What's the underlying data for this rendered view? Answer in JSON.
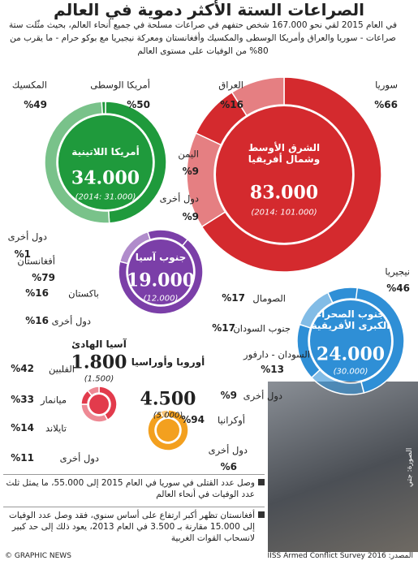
{
  "header": {
    "title": "الصراعات الستة الأكثر دموية في العالم",
    "intro": "في العام 2015 لقي نحو 167.000 شخص حتفهم في صراعات مسلحة في جميع أنحاء العالم، بحيث مثّلت ستة صراعات - سوريا والعراق وأمريكا الوسطى والمكسيك وأفغانستان ومعركة نيجيريا مع بوكو حرام - ما يقرب من 80% من الوفيات على مستوى العالم"
  },
  "regions": [
    {
      "name": "الشرق الأوسط وشمال أفريقيا",
      "total": "83.000",
      "previous": "(101.000 :2014)",
      "color": "#d42a2e",
      "segments": [
        {
          "name": "سوريا",
          "value": 66,
          "label": "%66"
        },
        {
          "name": "العراق",
          "value": 16,
          "label": "%16"
        },
        {
          "name": "اليمن",
          "value": 9,
          "label": "%9"
        },
        {
          "name": "دول أخرى",
          "value": 9,
          "label": "%9"
        }
      ]
    },
    {
      "name": "أمريكا اللاتينية",
      "total": "34.000",
      "previous": "(31.000 :2014)",
      "color": "#1f9a3c",
      "segments": [
        {
          "name": "المكسيك",
          "value": 49,
          "label": "%49"
        },
        {
          "name": "أمريكا الوسطى",
          "value": 50,
          "label": "%50"
        },
        {
          "name": "دول أخرى",
          "value": 1,
          "label": "%1"
        }
      ]
    },
    {
      "name": "جنوب آسيا",
      "total": "19.000",
      "previous": "(12.000)",
      "color": "#7b3fa8",
      "segments": [
        {
          "name": "أفغانستان",
          "value": 79,
          "label": "%79"
        },
        {
          "name": "باكستان",
          "value": 16,
          "label": "%16"
        },
        {
          "name": "دول أخرى",
          "value": 16,
          "label": "%16"
        }
      ]
    },
    {
      "name": "جنوب الصحراء الكبرى الأفريقية",
      "total": "24.000",
      "previous": "(30.000)",
      "color": "#2f8fd6",
      "segments": [
        {
          "name": "نيجيريا",
          "value": 46,
          "label": "%46"
        },
        {
          "name": "الصومال",
          "value": 17,
          "label": "%17"
        },
        {
          "name": "جنوب السودان",
          "value": 17,
          "label": "%17"
        },
        {
          "name": "السودان - دارفور",
          "value": 13,
          "label": "%13"
        },
        {
          "name": "دول أخرى",
          "value": 9,
          "label": "%9"
        }
      ]
    },
    {
      "name": "آسيا الهادئ",
      "total": "1.800",
      "previous": "(1.500)",
      "color": "#e23b4c",
      "segments": [
        {
          "name": "الفلبين",
          "value": 42,
          "label": "%42"
        },
        {
          "name": "ميانمار",
          "value": 33,
          "label": "%33"
        },
        {
          "name": "تايلاند",
          "value": 14,
          "label": "%14"
        },
        {
          "name": "دول أخرى",
          "value": 11,
          "label": "%11"
        }
      ]
    },
    {
      "name": "أوروبا وأوراسيا",
      "total": "4.500",
      "previous": "(5.000)",
      "color": "#f3a01f",
      "segments": [
        {
          "name": "أوكرانيا",
          "value": 94,
          "label": "%94"
        },
        {
          "name": "دول أخرى",
          "value": 6,
          "label": "%6"
        }
      ]
    }
  ],
  "notes": [
    "وصل عدد القتلى في سوريا في العام 2015 إلى 55.000، ما يمثل ثلث عدد الوفيات في أنحاء العالم",
    "أفغانستان تظهر أكبر ارتفاع على أساس سنوي، فقد وصل عدد الوفيات إلى 15.000 مقارنة بـ 3.500 في العام 2013، يعود ذلك إلى حد كبير لانسحاب القوات الغربية"
  ],
  "footer": {
    "credit": "© GRAPHIC NEWS",
    "source": "المصدر: IISS Armed Conflict Survey 2016",
    "photo_credit": "الصورة: جتي"
  }
}
